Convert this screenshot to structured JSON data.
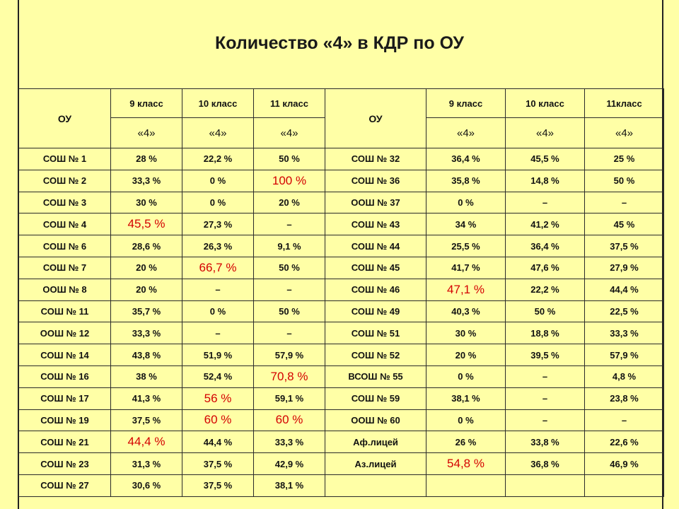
{
  "title": "Количество «4» в КДР по ОУ",
  "headers": {
    "ou_left": "ОУ",
    "ou_right": "ОУ",
    "left_classes": [
      "9 класс",
      "10 класс",
      "11 класс"
    ],
    "right_classes": [
      "9 класс",
      "10 класс",
      "11класс"
    ],
    "sub": "«4»"
  },
  "rows": [
    {
      "l": [
        "СОШ № 1",
        "28 %",
        "22,2 %",
        "50 %"
      ],
      "r": [
        "СОШ № 32",
        "36,4 %",
        "45,5 %",
        "25 %"
      ],
      "hl": []
    },
    {
      "l": [
        "СОШ № 2",
        "33,3 %",
        "0 %",
        "100 %"
      ],
      "r": [
        "СОШ № 36",
        "35,8 %",
        "14,8 %",
        "50 %"
      ],
      "hl": [
        "l3"
      ]
    },
    {
      "l": [
        "СОШ № 3",
        "30 %",
        "0 %",
        "20 %"
      ],
      "r": [
        "ООШ № 37",
        "0 %",
        "–",
        "–"
      ],
      "hl": []
    },
    {
      "l": [
        "СОШ № 4",
        "45,5 %",
        "27,3 %",
        "–"
      ],
      "r": [
        "СОШ № 43",
        "34 %",
        "41,2 %",
        "45 %"
      ],
      "hl": [
        "l1"
      ]
    },
    {
      "l": [
        "СОШ № 6",
        "28,6 %",
        "26,3 %",
        "9,1 %"
      ],
      "r": [
        "СОШ № 44",
        "25,5 %",
        "36,4 %",
        "37,5 %"
      ],
      "hl": []
    },
    {
      "l": [
        "СОШ № 7",
        "20 %",
        "66,7 %",
        "50 %"
      ],
      "r": [
        "СОШ № 45",
        "41,7 %",
        "47,6 %",
        "27,9 %"
      ],
      "hl": [
        "l2"
      ]
    },
    {
      "l": [
        "ООШ № 8",
        "20 %",
        "–",
        "–"
      ],
      "r": [
        "СОШ № 46",
        "47,1 %",
        "22,2 %",
        "44,4 %"
      ],
      "hl": [
        "r1"
      ]
    },
    {
      "l": [
        "СОШ № 11",
        "35,7 %",
        "0 %",
        "50 %"
      ],
      "r": [
        "СОШ № 49",
        "40,3 %",
        "50 %",
        "22,5 %"
      ],
      "hl": []
    },
    {
      "l": [
        "ООШ № 12",
        "33,3 %",
        "–",
        "–"
      ],
      "r": [
        "СОШ № 51",
        "30 %",
        "18,8 %",
        "33,3 %"
      ],
      "hl": []
    },
    {
      "l": [
        "СОШ № 14",
        "43,8 %",
        "51,9 %",
        "57,9 %"
      ],
      "r": [
        "СОШ № 52",
        "20 %",
        "39,5 %",
        "57,9 %"
      ],
      "hl": []
    },
    {
      "l": [
        "СОШ № 16",
        "38 %",
        "52,4 %",
        "70,8 %"
      ],
      "r": [
        "ВСОШ № 55",
        "0 %",
        "–",
        "4,8 %"
      ],
      "hl": [
        "l3"
      ]
    },
    {
      "l": [
        "СОШ № 17",
        "41,3 %",
        "56 %",
        "59,1 %"
      ],
      "r": [
        "СОШ № 59",
        "38,1 %",
        "–",
        "23,8 %"
      ],
      "hl": [
        "l2"
      ]
    },
    {
      "l": [
        "СОШ № 19",
        "37,5 %",
        "60 %",
        "60 %"
      ],
      "r": [
        "ООШ № 60",
        "0 %",
        "–",
        "–"
      ],
      "hl": [
        "l2",
        "l3"
      ]
    },
    {
      "l": [
        "СОШ № 21",
        "44,4 %",
        "44,4 %",
        "33,3 %"
      ],
      "r": [
        "Аф.лицей",
        "26 %",
        "33,8 %",
        "22,6 %"
      ],
      "hl": [
        "l1"
      ]
    },
    {
      "l": [
        "СОШ № 23",
        "31,3 %",
        "37,5 %",
        "42,9 %"
      ],
      "r": [
        "Аз.лицей",
        "54,8 %",
        "36,8 %",
        "46,9 %"
      ],
      "hl": [
        "r1"
      ]
    },
    {
      "l": [
        "СОШ № 27",
        "30,6 %",
        "37,5 %",
        "38,1 %"
      ],
      "r": [
        "",
        "",
        "",
        ""
      ],
      "hl": []
    }
  ]
}
